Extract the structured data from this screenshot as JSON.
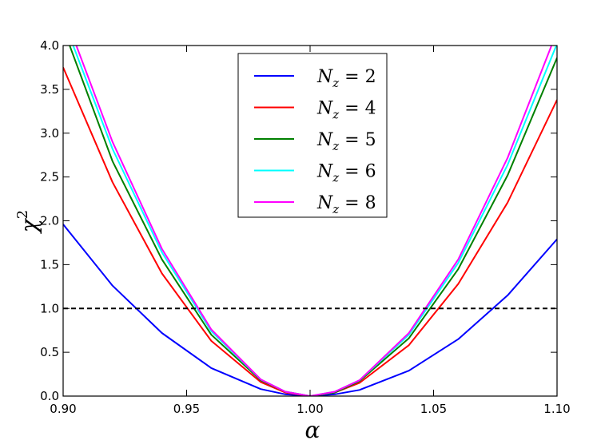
{
  "chart_data": {
    "type": "line",
    "title": "",
    "xlabel": "α",
    "ylabel": "χ",
    "ylabel_superscript": "2",
    "xlim": [
      0.9,
      1.1
    ],
    "ylim": [
      0.0,
      4.0
    ],
    "x_ticks": [
      "0.90",
      "0.95",
      "1.00",
      "1.05",
      "1.10"
    ],
    "x_tick_values": [
      0.9,
      0.95,
      1.0,
      1.05,
      1.1
    ],
    "y_ticks": [
      "0.0",
      "0.5",
      "1.0",
      "1.5",
      "2.0",
      "2.5",
      "3.0",
      "3.5",
      "4.0"
    ],
    "y_tick_values": [
      0.0,
      0.5,
      1.0,
      1.5,
      2.0,
      2.5,
      3.0,
      3.5,
      4.0
    ],
    "grid": false,
    "legend_position": "top-center",
    "x": [
      0.9,
      0.92,
      0.94,
      0.96,
      0.98,
      0.99,
      1.0,
      1.01,
      1.02,
      1.04,
      1.06,
      1.08,
      1.1
    ],
    "series": [
      {
        "name": "N_z = 2",
        "label_var": "N",
        "label_sub": "z",
        "label_rest": "= 2",
        "color": "#0000ff",
        "values": [
          1.96,
          1.26,
          0.72,
          0.32,
          0.08,
          0.02,
          0.0,
          0.02,
          0.07,
          0.29,
          0.65,
          1.15,
          1.79
        ]
      },
      {
        "name": "N_z = 4",
        "label_var": "N",
        "label_sub": "z",
        "label_rest": "= 4",
        "color": "#ff0000",
        "values": [
          3.75,
          2.44,
          1.4,
          0.63,
          0.16,
          0.04,
          0.0,
          0.04,
          0.15,
          0.58,
          1.28,
          2.21,
          3.38
        ]
      },
      {
        "name": "N_z = 5",
        "label_var": "N",
        "label_sub": "z",
        "label_rest": "= 5",
        "color": "#008000",
        "values": [
          4.2,
          2.68,
          1.56,
          0.7,
          0.18,
          0.05,
          0.0,
          0.04,
          0.17,
          0.66,
          1.45,
          2.52,
          3.86
        ]
      },
      {
        "name": "N_z = 6",
        "label_var": "N",
        "label_sub": "z",
        "label_rest": "= 6",
        "color": "#00ffff",
        "values": [
          4.3,
          2.82,
          1.64,
          0.74,
          0.19,
          0.05,
          0.0,
          0.05,
          0.18,
          0.7,
          1.52,
          2.64,
          4.02
        ]
      },
      {
        "name": "N_z = 8",
        "label_var": "N",
        "label_sub": "z",
        "label_rest": "= 8",
        "color": "#ff00ff",
        "values": [
          4.4,
          2.9,
          1.68,
          0.76,
          0.19,
          0.05,
          0.0,
          0.05,
          0.18,
          0.72,
          1.56,
          2.72,
          4.16
        ]
      }
    ],
    "reference_line": {
      "y": 1.0,
      "style": "dashed",
      "color": "#000000"
    }
  }
}
